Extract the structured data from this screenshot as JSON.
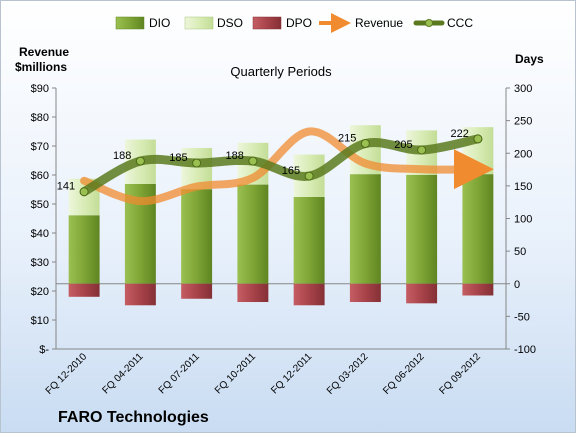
{
  "chart_data": {
    "type": "bar",
    "title": "Quarterly Periods",
    "company": "FARO Technologies",
    "left_axis_label": [
      "Revenue",
      "$millions"
    ],
    "right_axis_label": "Days",
    "categories": [
      "FQ 12-2010",
      "FQ 04-2011",
      "FQ 07-2011",
      "FQ 10-2011",
      "FQ 12-2011",
      "FQ 03-2012",
      "FQ 06-2012",
      "FQ 09-2012"
    ],
    "left_axis": {
      "ylim": [
        0,
        90
      ],
      "ticks": [
        "$-",
        "$10",
        "$20",
        "$30",
        "$40",
        "$50",
        "$60",
        "$70",
        "$80",
        "$90"
      ]
    },
    "right_axis": {
      "ylim": [
        -100,
        300
      ],
      "ticks": [
        "-100",
        "-50",
        "0",
        "50",
        "100",
        "150",
        "200",
        "250",
        "300"
      ]
    },
    "legend": {
      "position": "top",
      "entries": [
        "DIO",
        "DSO",
        "DPO",
        "Revenue",
        "CCC"
      ]
    },
    "series": [
      {
        "name": "DIO",
        "axis": "right",
        "kind": "stacked-bar",
        "color": "#7fa535",
        "values": [
          105,
          153,
          145,
          152,
          133,
          168,
          167,
          168
        ]
      },
      {
        "name": "DSO",
        "axis": "right",
        "kind": "stacked-bar",
        "color": "#d9ecb6",
        "values": [
          56,
          68,
          63,
          64,
          65,
          75,
          68,
          72
        ]
      },
      {
        "name": "DPO",
        "axis": "right",
        "kind": "stacked-bar",
        "color": "#b04a4f",
        "values": [
          -20,
          -33,
          -23,
          -28,
          -33,
          -28,
          -30,
          -18
        ]
      },
      {
        "name": "Revenue",
        "axis": "left",
        "kind": "line",
        "color": "#f08b30",
        "values": [
          58,
          51,
          56,
          59,
          75,
          64,
          62,
          62
        ]
      },
      {
        "name": "CCC",
        "axis": "right",
        "kind": "line",
        "color": "#5b7a1f",
        "values": [
          141,
          188,
          185,
          188,
          165,
          215,
          205,
          222
        ],
        "data_labels": [
          "141",
          "188",
          "185",
          "188",
          "165",
          "215",
          "205",
          "222"
        ]
      }
    ],
    "grid": false
  }
}
